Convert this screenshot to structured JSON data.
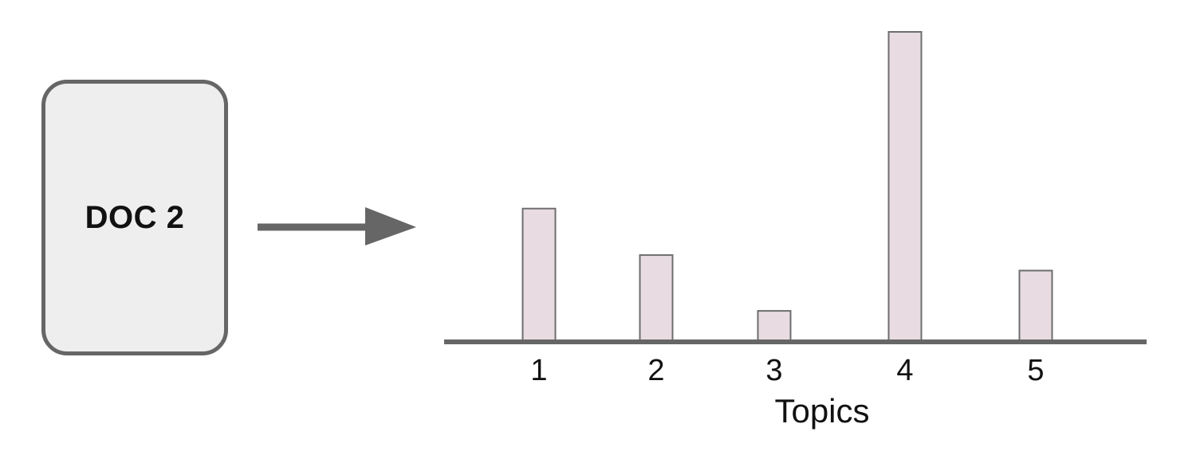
{
  "document": {
    "label": "DOC 2"
  },
  "chart_data": {
    "type": "bar",
    "categories": [
      "1",
      "2",
      "3",
      "4",
      "5"
    ],
    "values": [
      43,
      28,
      10,
      100,
      23
    ],
    "xlabel": "Topics",
    "ylabel": "",
    "ylim": [
      0,
      100
    ],
    "grid": false
  },
  "colors": {
    "bar_fill": "#e8dce2",
    "bar_stroke": "#6e6e6e",
    "axis": "#666666",
    "arrow": "#666666",
    "card_fill": "#eeeeee",
    "card_border": "#666666"
  }
}
